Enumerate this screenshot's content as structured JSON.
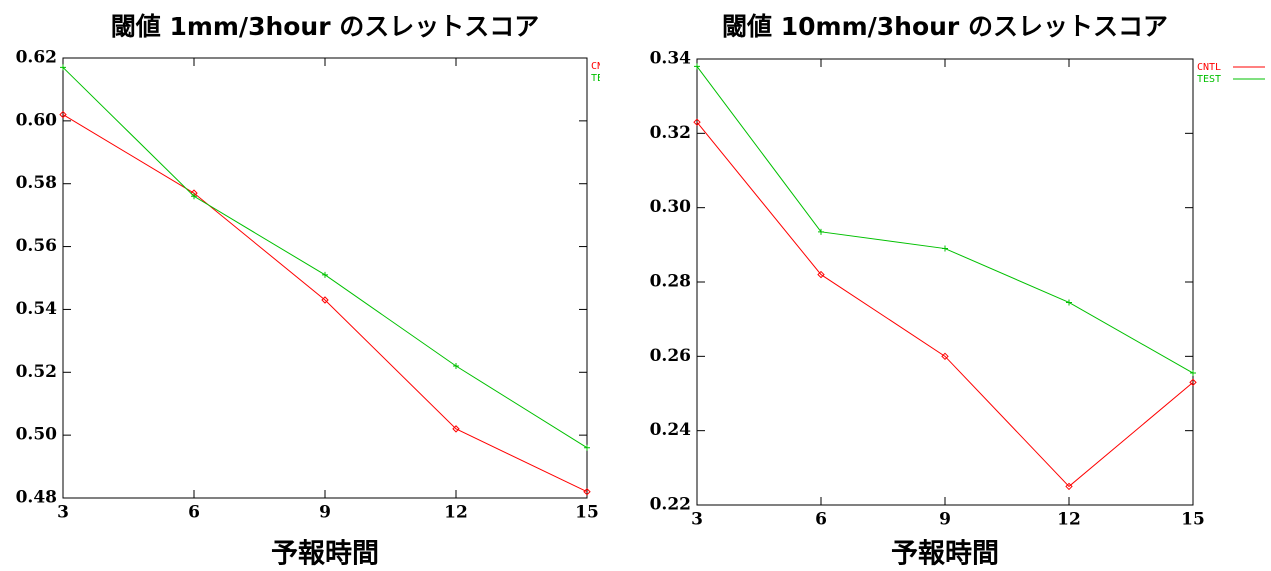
{
  "chart_data": [
    {
      "type": "line",
      "title": "閾値 1mm/3hour のスレットスコア",
      "x_label": "予報時間",
      "x": [
        3,
        6,
        9,
        12,
        15
      ],
      "xlim": [
        3,
        15
      ],
      "xticks": [
        3,
        6,
        9,
        12,
        15
      ],
      "ylim": [
        0.48,
        0.62
      ],
      "yticks": [
        0.48,
        {
          "value": 0.5,
          "label": "0.50"
        },
        0.52,
        0.54,
        0.56,
        0.58,
        {
          "value": 0.6,
          "label": "0.60"
        },
        0.62
      ],
      "legend": "right",
      "series": [
        {
          "name": "CNTL",
          "color": "#ff0000",
          "values": [
            0.602,
            0.577,
            0.543,
            0.502,
            0.482
          ]
        },
        {
          "name": "TEST",
          "color": "#00c000",
          "values": [
            0.617,
            0.576,
            0.551,
            0.522,
            0.496
          ]
        }
      ]
    },
    {
      "type": "line",
      "title": "閾値 10mm/3hour のスレットスコア",
      "x_label": "予報時間",
      "x": [
        3,
        6,
        9,
        12,
        15
      ],
      "xlim": [
        3,
        15
      ],
      "xticks": [
        3,
        6,
        9,
        12,
        15
      ],
      "ylim": [
        0.22,
        0.34
      ],
      "yticks": [
        0.22,
        0.24,
        0.26,
        0.28,
        {
          "value": 0.3,
          "label": "0.30"
        },
        0.32,
        0.34
      ],
      "legend": "right",
      "series": [
        {
          "name": "CNTL",
          "color": "#ff0000",
          "values": [
            0.323,
            0.282,
            0.26,
            0.225,
            0.253
          ]
        },
        {
          "name": "TEST",
          "color": "#00c000",
          "values": [
            0.338,
            0.2935,
            0.289,
            0.2745,
            0.2555
          ]
        }
      ]
    }
  ]
}
